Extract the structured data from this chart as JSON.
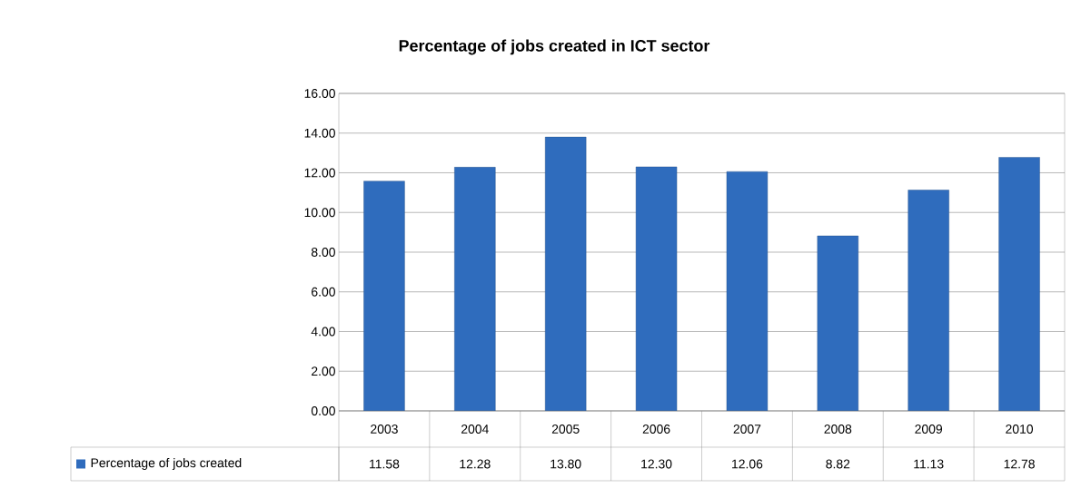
{
  "chart_data": {
    "type": "bar",
    "title": "Percentage of  jobs created in ICT sector",
    "categories": [
      "2003",
      "2004",
      "2005",
      "2006",
      "2007",
      "2008",
      "2009",
      "2010"
    ],
    "series": [
      {
        "name": "Percentage of jobs created",
        "color": "#2f6cbd",
        "values": [
          11.58,
          12.28,
          13.8,
          12.3,
          12.06,
          8.82,
          11.13,
          12.78
        ],
        "value_labels": [
          "11.58",
          "12.28",
          "13.80",
          "12.30",
          "12.06",
          "8.82",
          "11.13",
          "12.78"
        ]
      }
    ],
    "ylim": [
      0,
      16
    ],
    "yticks": [
      {
        "value": 0,
        "label": "0.00"
      },
      {
        "value": 2,
        "label": "2.00"
      },
      {
        "value": 4,
        "label": "4.00"
      },
      {
        "value": 6,
        "label": "6.00"
      },
      {
        "value": 8,
        "label": "8.00"
      },
      {
        "value": 10,
        "label": "10.00"
      },
      {
        "value": 12,
        "label": "12.00"
      },
      {
        "value": 14,
        "label": "14.00"
      },
      {
        "value": 16,
        "label": "16.00"
      }
    ],
    "grid": "y",
    "legend": "bottom"
  }
}
